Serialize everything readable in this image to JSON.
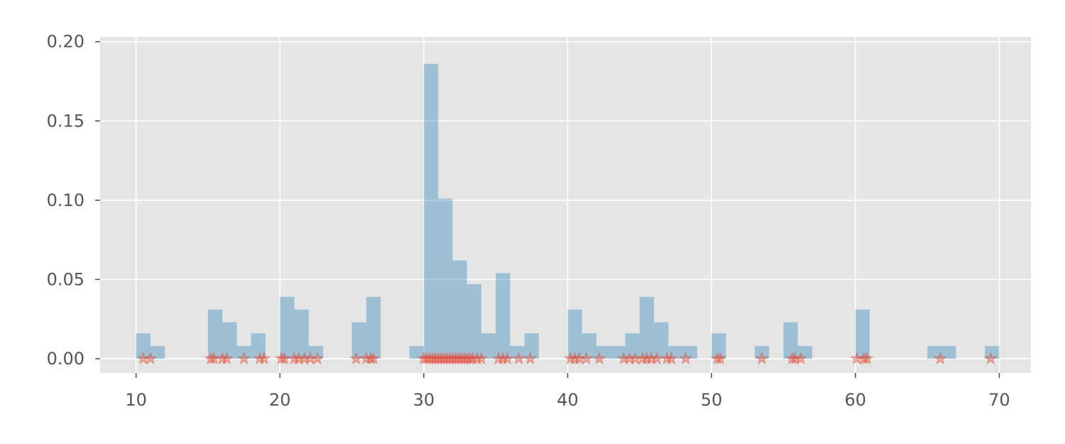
{
  "chart_data": {
    "type": "bar",
    "title": "",
    "xlabel": "",
    "ylabel": "",
    "xlim": [
      7.5,
      72.2
    ],
    "ylim": [
      -0.009,
      0.203
    ],
    "grid": true,
    "x_ticks": [
      10,
      20,
      30,
      40,
      50,
      60,
      70
    ],
    "x_tick_labels": [
      "10",
      "20",
      "30",
      "40",
      "50",
      "60",
      "70"
    ],
    "y_ticks": [
      0.0,
      0.05,
      0.1,
      0.15,
      0.2
    ],
    "y_tick_labels": [
      "0.00",
      "0.05",
      "0.10",
      "0.15",
      "0.20"
    ],
    "bin_width": 1.0,
    "histogram": {
      "bin_starts": [
        10,
        11,
        15,
        16,
        17,
        18,
        20,
        21,
        22,
        25,
        26,
        29,
        30,
        31,
        32,
        33,
        34,
        35,
        36,
        37,
        40,
        41,
        42,
        43,
        44,
        45,
        46,
        47,
        48,
        50,
        53,
        55,
        56,
        60,
        65,
        66,
        69
      ],
      "density": [
        0.016,
        0.008,
        0.031,
        0.023,
        0.008,
        0.016,
        0.039,
        0.031,
        0.008,
        0.023,
        0.039,
        0.008,
        0.186,
        0.101,
        0.062,
        0.047,
        0.016,
        0.054,
        0.008,
        0.016,
        0.031,
        0.016,
        0.008,
        0.008,
        0.016,
        0.039,
        0.023,
        0.008,
        0.008,
        0.016,
        0.008,
        0.023,
        0.008,
        0.031,
        0.008,
        0.008,
        0.008
      ],
      "color": "#348ABD",
      "alpha": 0.4
    },
    "rug_points": {
      "marker": "star",
      "color": "#E24A33",
      "alpha": 0.4,
      "y": 0,
      "x": [
        10.5,
        11.0,
        15.2,
        15.4,
        16.0,
        16.3,
        17.5,
        18.6,
        18.9,
        20.1,
        20.3,
        21.0,
        21.3,
        21.7,
        22.1,
        22.6,
        25.3,
        26.0,
        26.3,
        26.5,
        30.0,
        30.2,
        30.4,
        30.6,
        30.8,
        31.0,
        31.2,
        31.4,
        31.6,
        31.8,
        32.0,
        32.2,
        32.4,
        32.6,
        32.8,
        33.0,
        33.2,
        33.4,
        33.7,
        34.0,
        35.2,
        35.5,
        35.8,
        36.6,
        37.4,
        40.2,
        40.5,
        40.8,
        41.3,
        42.2,
        43.9,
        44.3,
        44.7,
        45.2,
        45.5,
        45.8,
        46.2,
        46.9,
        47.2,
        48.2,
        50.4,
        50.6,
        53.5,
        55.6,
        55.8,
        56.2,
        60.1,
        60.6,
        60.8,
        65.9,
        69.4
      ]
    },
    "colors": {
      "plot_background": "#E5E5E5",
      "grid": "#FFFFFF",
      "tick_text": "#555555"
    }
  }
}
